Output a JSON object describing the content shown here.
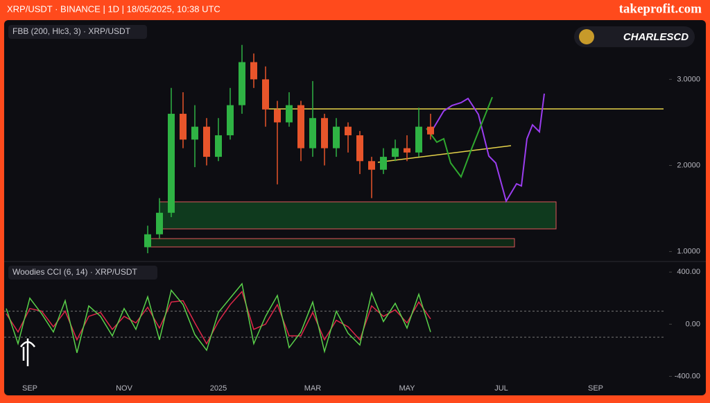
{
  "header": {
    "title": "XRP/USDT · BINANCE | 1D | 18/05/2025, 10:38 UTC",
    "brand": "takeprofit.com"
  },
  "author": "CHARLESCD",
  "chart_data": [
    {
      "type": "candlestick",
      "title": "FBB (200, Hlc3, 3) · XRP/USDT",
      "categories": [
        null,
        null,
        "SEP",
        null,
        null,
        null,
        null,
        null,
        null,
        null,
        "NOV",
        null,
        null,
        null,
        null,
        null,
        null,
        null,
        "2025",
        null,
        null,
        null,
        null,
        null,
        null,
        null,
        "MAR",
        null,
        null,
        null,
        null,
        null,
        null,
        null,
        "MAY",
        null,
        null,
        null,
        null,
        null,
        null,
        null,
        "JUL",
        null,
        null,
        null,
        null,
        null,
        null,
        null,
        "SEP",
        null,
        null,
        null,
        null,
        null,
        null
      ],
      "open": [
        null,
        null,
        null,
        null,
        null,
        null,
        null,
        null,
        null,
        null,
        null,
        null,
        1.05,
        1.2,
        1.45,
        2.6,
        2.3,
        2.45,
        2.1,
        2.35,
        2.7,
        3.2,
        3.0,
        2.65,
        2.5,
        2.7,
        2.2,
        2.55,
        2.2,
        2.45,
        2.35,
        2.05,
        1.95,
        2.1,
        2.2,
        2.15,
        2.45,
        null,
        null,
        null,
        null,
        null,
        null,
        null,
        null,
        null,
        null,
        null,
        null,
        null,
        null,
        null,
        null,
        null,
        null,
        null,
        null
      ],
      "high": [
        null,
        null,
        null,
        null,
        null,
        null,
        null,
        null,
        null,
        null,
        null,
        null,
        1.3,
        1.62,
        2.9,
        2.85,
        2.7,
        2.55,
        2.55,
        2.9,
        3.4,
        3.3,
        3.15,
        2.75,
        2.85,
        2.75,
        2.98,
        2.6,
        2.55,
        2.5,
        2.4,
        2.1,
        2.2,
        2.3,
        2.35,
        2.67,
        2.6,
        null,
        null,
        null,
        null,
        null,
        null,
        null,
        null,
        null,
        null,
        null,
        null,
        null,
        null,
        null,
        null,
        null,
        null,
        null,
        null
      ],
      "low": [
        null,
        null,
        null,
        null,
        null,
        null,
        null,
        null,
        null,
        null,
        null,
        null,
        0.98,
        1.15,
        1.4,
        2.2,
        1.98,
        2.0,
        2.05,
        2.3,
        2.6,
        2.9,
        2.45,
        1.78,
        2.45,
        2.05,
        2.1,
        2.0,
        2.1,
        2.15,
        1.9,
        1.62,
        1.9,
        2.05,
        2.05,
        2.1,
        2.3,
        null,
        null,
        null,
        null,
        null,
        null,
        null,
        null,
        null,
        null,
        null,
        null,
        null,
        null,
        null,
        null,
        null,
        null,
        null,
        null
      ],
      "close": [
        null,
        null,
        null,
        null,
        null,
        null,
        null,
        null,
        null,
        null,
        null,
        null,
        1.2,
        1.45,
        2.6,
        2.3,
        2.45,
        2.1,
        2.35,
        2.7,
        3.2,
        3.0,
        2.65,
        2.5,
        2.7,
        2.2,
        2.55,
        2.2,
        2.45,
        2.35,
        2.05,
        1.95,
        2.1,
        2.2,
        2.15,
        2.45,
        2.36,
        null,
        null,
        null,
        null,
        null,
        null,
        null,
        null,
        null,
        null,
        null,
        null,
        null,
        null,
        null,
        null,
        null,
        null,
        null,
        null
      ],
      "up_color": "#2fb344",
      "down_color": "#e8552b",
      "ylim": [
        0.9,
        3.68
      ],
      "yticks": [
        {
          "value": 3,
          "label": "3.0000"
        },
        {
          "value": 2,
          "label": "2.0000"
        },
        {
          "value": 1,
          "label": "1.0000"
        }
      ]
    },
    {
      "type": "line",
      "title": "Woodies CCI (6, 14) · XRP/USDT",
      "series": [
        {
          "color": "#e0284a",
          "values": [
            80,
            -60,
            120,
            100,
            -20,
            100,
            -120,
            60,
            90,
            -40,
            60,
            10,
            130,
            -30,
            170,
            180,
            10,
            -150,
            20,
            150,
            250,
            -40,
            0,
            150,
            -90,
            -90,
            90,
            -120,
            30,
            -20,
            -120,
            140,
            60,
            110,
            10,
            170,
            40,
            null,
            null,
            null,
            null,
            null,
            null,
            null,
            null,
            null,
            null,
            null,
            null,
            null,
            null,
            null,
            null,
            null,
            null,
            null,
            null
          ]
        },
        {
          "color": "#5ad14a",
          "values": [
            120,
            -150,
            200,
            80,
            -60,
            180,
            -220,
            140,
            60,
            -90,
            120,
            -40,
            210,
            -120,
            260,
            150,
            -80,
            -200,
            90,
            200,
            310,
            -150,
            60,
            220,
            -180,
            -60,
            170,
            -210,
            100,
            -70,
            -160,
            240,
            20,
            160,
            -30,
            230,
            -60,
            null,
            null,
            null,
            null,
            null,
            null,
            null,
            null,
            null,
            null,
            null,
            null,
            null,
            null,
            null,
            null,
            null,
            null,
            null,
            null
          ]
        }
      ],
      "hlines": [
        100,
        -100
      ],
      "ylim": [
        -440,
        465
      ],
      "yticks": [
        {
          "value": 400,
          "label": "400.00"
        },
        {
          "value": 0,
          "label": "0.00"
        },
        {
          "value": -400,
          "label": "-400.00"
        }
      ]
    }
  ]
}
